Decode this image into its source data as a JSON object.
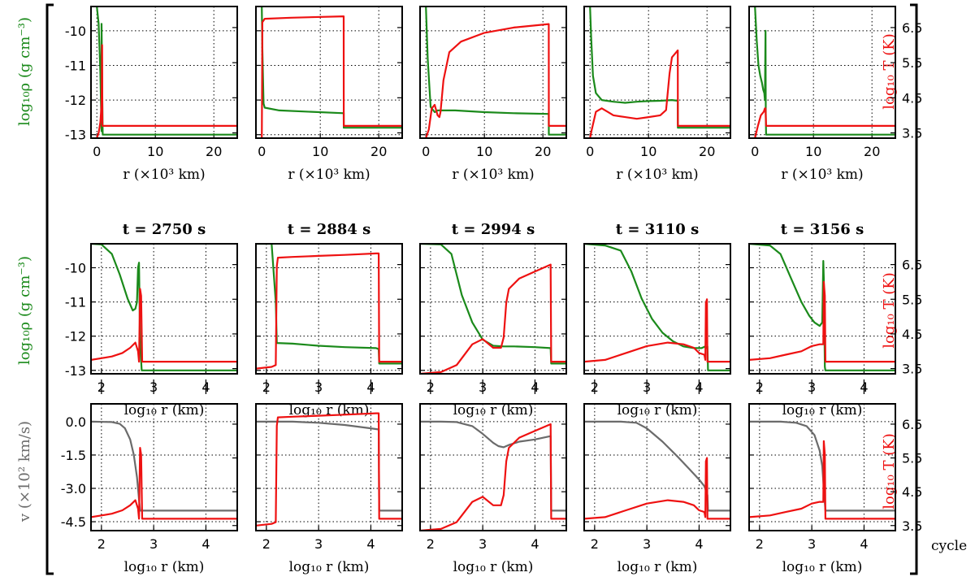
{
  "figure_label": "cycle",
  "colors": {
    "density": "#1b8a1b",
    "temperature": "#ee1111",
    "velocity": "#6b6b6b"
  },
  "axis_labels": {
    "top_x": "r (×10³ km)",
    "log_x": "log₁₀ r (km)",
    "rho_y": "log₁₀ρ (g cm⁻³)",
    "temp_y": "log₁₀ T (K)",
    "vel_y": "v (×10² km/s)"
  },
  "chart_data": {
    "type": "line",
    "panel_titles": [
      "t = 2750 s",
      "t = 2884 s",
      "t = 2994 s",
      "t = 3110 s",
      "t = 3156 s"
    ],
    "rows": [
      {
        "name": "density-temperature-linear",
        "xlim": [
          -1,
          24
        ],
        "xticks": [
          "0",
          "10",
          "20"
        ],
        "left_ylim": [
          -13.1,
          -9.3
        ],
        "left_yticks": [
          "-10",
          "-11",
          "-12",
          "-13"
        ],
        "right_ylim": [
          3.35,
          7.1
        ],
        "right_yticks": [
          "6.5",
          "5.5",
          "4.5",
          "3.5"
        ]
      },
      {
        "name": "density-temperature-log",
        "xlim": [
          1.8,
          4.6
        ],
        "xticks": [
          "2",
          "3",
          "4"
        ],
        "left_ylim": [
          -13.1,
          -9.3
        ],
        "left_yticks": [
          "-10",
          "-11",
          "-12",
          "-13"
        ],
        "right_ylim": [
          3.35,
          7.1
        ],
        "right_yticks": [
          "6.5",
          "5.5",
          "4.5",
          "3.5"
        ]
      },
      {
        "name": "velocity-temperature-log",
        "xlim": [
          1.8,
          4.6
        ],
        "xticks": [
          "2",
          "3",
          "4"
        ],
        "left_ylim": [
          -4.9,
          0.8
        ],
        "left_yticks": [
          "0.0",
          "-1.5",
          "-3.0",
          "-4.5"
        ],
        "right_ylim": [
          3.35,
          7.1
        ],
        "right_yticks": [
          "6.5",
          "5.5",
          "4.5",
          "3.5"
        ]
      }
    ],
    "series": [
      [
        {
          "name": "density",
          "x": [
            0,
            0.3,
            0.6,
            0.8,
            0.8,
            1.0,
            1.2,
            24
          ],
          "y": [
            -9.3,
            -9.8,
            -11.2,
            -12.9,
            -9.8,
            -13.0,
            -13.0,
            -13.0
          ]
        },
        {
          "name": "temperature",
          "x": [
            0,
            0.3,
            0.6,
            0.8,
            0.9,
            0.95,
            1.05,
            24
          ],
          "y": [
            3.35,
            3.5,
            3.8,
            4.3,
            6.0,
            3.7,
            3.7,
            3.7
          ]
        }
      ],
      [
        {
          "name": "density",
          "x": [
            0,
            0.1,
            0.3,
            0.5,
            3,
            14,
            14.01,
            24
          ],
          "y": [
            -9.3,
            -10.5,
            -12.1,
            -12.22,
            -12.3,
            -12.38,
            -12.8,
            -12.8
          ]
        },
        {
          "name": "temperature",
          "x": [
            0,
            0.02,
            0.1,
            0.5,
            5,
            14,
            14.01,
            24
          ],
          "y": [
            3.35,
            3.6,
            6.65,
            6.75,
            6.78,
            6.82,
            3.7,
            3.7
          ]
        }
      ],
      [
        {
          "name": "density",
          "x": [
            0,
            0.3,
            0.8,
            1.5,
            2,
            3,
            5,
            10,
            15,
            21,
            21.01,
            24
          ],
          "y": [
            -9.3,
            -10.8,
            -12.2,
            -12.35,
            -12.3,
            -12.3,
            -12.3,
            -12.35,
            -12.38,
            -12.4,
            -13.0,
            -13.0
          ]
        },
        {
          "name": "temperature",
          "x": [
            0,
            0.5,
            1,
            1.5,
            2,
            2.3,
            2.5,
            3,
            4,
            6,
            10,
            15,
            21,
            21.01,
            24
          ],
          "y": [
            3.35,
            3.6,
            4.2,
            4.3,
            4.0,
            3.95,
            4.1,
            5.0,
            5.8,
            6.1,
            6.35,
            6.5,
            6.6,
            3.7,
            3.7
          ]
        }
      ],
      [
        {
          "name": "density",
          "x": [
            0,
            0.2,
            0.5,
            1,
            2,
            4,
            6,
            8,
            10,
            12,
            14,
            15,
            15.01,
            24
          ],
          "y": [
            -9.3,
            -10.2,
            -11.3,
            -11.8,
            -12.0,
            -12.05,
            -12.08,
            -12.05,
            -12.03,
            -12.02,
            -12.0,
            -12.02,
            -12.8,
            -12.8
          ]
        },
        {
          "name": "temperature",
          "x": [
            0,
            0.3,
            1,
            2,
            3,
            4,
            6,
            8,
            10,
            12,
            13,
            13.6,
            14,
            14.5,
            15,
            15.01,
            24
          ],
          "y": [
            3.35,
            3.6,
            4.1,
            4.2,
            4.1,
            4.0,
            3.95,
            3.9,
            3.95,
            4.0,
            4.15,
            5.2,
            5.65,
            5.75,
            5.85,
            3.7,
            3.7
          ]
        }
      ],
      [
        {
          "name": "density",
          "x": [
            0,
            0.3,
            0.6,
            0.9,
            1.2,
            1.4,
            1.6,
            1.7,
            1.8,
            1.85,
            1.9,
            2.0,
            24
          ],
          "y": [
            -9.3,
            -10.3,
            -11.0,
            -11.3,
            -11.5,
            -11.7,
            -11.8,
            -12.0,
            -10.0,
            -12.5,
            -13.0,
            -13.0,
            -13.0
          ]
        },
        {
          "name": "temperature",
          "x": [
            0,
            0.5,
            1,
            1.5,
            1.7,
            1.8,
            1.9,
            2.0,
            24
          ],
          "y": [
            3.35,
            3.7,
            4.0,
            4.1,
            4.2,
            4.2,
            3.7,
            3.7,
            3.7
          ]
        }
      ],
      [
        {
          "name": "density",
          "x": [
            1.8,
            2.0,
            2.2,
            2.35,
            2.5,
            2.6,
            2.65,
            2.68,
            2.7,
            2.72,
            2.74,
            2.77,
            2.8,
            4.6
          ],
          "y": [
            -9.3,
            -9.32,
            -9.6,
            -10.2,
            -10.9,
            -11.25,
            -11.2,
            -11.0,
            -10.0,
            -9.85,
            -12.2,
            -13.0,
            -13.0,
            -13.0
          ]
        },
        {
          "name": "temperature",
          "x": [
            1.8,
            2.0,
            2.2,
            2.4,
            2.55,
            2.65,
            2.7,
            2.72,
            2.74,
            2.76,
            2.78,
            2.8,
            4.6
          ],
          "y": [
            3.75,
            3.8,
            3.85,
            3.95,
            4.1,
            4.25,
            4.0,
            3.7,
            5.8,
            5.6,
            3.7,
            3.7,
            3.7
          ]
        }
      ],
      [
        {
          "name": "density",
          "x": [
            1.8,
            2.0,
            2.1,
            2.18,
            2.2,
            2.5,
            3,
            3.5,
            4.1,
            4.15,
            4.16,
            4.6
          ],
          "y": [
            -9.3,
            -9.3,
            -9.3,
            -11.0,
            -12.2,
            -12.22,
            -12.28,
            -12.32,
            -12.35,
            -12.38,
            -12.8,
            -12.8
          ]
        },
        {
          "name": "temperature",
          "x": [
            1.8,
            2.1,
            2.18,
            2.2,
            2.22,
            2.5,
            3,
            3.5,
            4.1,
            4.15,
            4.16,
            4.6
          ],
          "y": [
            3.5,
            3.55,
            3.6,
            6.45,
            6.7,
            6.72,
            6.75,
            6.78,
            6.82,
            6.82,
            3.7,
            3.7
          ]
        }
      ],
      [
        {
          "name": "density",
          "x": [
            1.8,
            2.2,
            2.4,
            2.6,
            2.8,
            3.0,
            3.2,
            3.4,
            3.6,
            4.0,
            4.3,
            4.31,
            4.6
          ],
          "y": [
            -9.3,
            -9.32,
            -9.6,
            -10.8,
            -11.6,
            -12.1,
            -12.28,
            -12.3,
            -12.3,
            -12.32,
            -12.35,
            -12.8,
            -12.8
          ]
        },
        {
          "name": "temperature",
          "x": [
            1.8,
            2.2,
            2.5,
            2.8,
            3.0,
            3.2,
            3.35,
            3.4,
            3.45,
            3.5,
            3.7,
            4.0,
            4.3,
            4.31,
            4.6
          ],
          "y": [
            3.35,
            3.4,
            3.6,
            4.2,
            4.35,
            4.1,
            4.1,
            4.4,
            5.4,
            5.8,
            6.1,
            6.3,
            6.5,
            3.7,
            3.7
          ]
        }
      ],
      [
        {
          "name": "density",
          "x": [
            1.8,
            2.2,
            2.5,
            2.7,
            2.9,
            3.1,
            3.3,
            3.5,
            3.7,
            3.9,
            4.05,
            4.12,
            4.13,
            4.16,
            4.17,
            4.6
          ],
          "y": [
            -9.3,
            -9.35,
            -9.5,
            -10.1,
            -10.9,
            -11.5,
            -11.9,
            -12.15,
            -12.3,
            -12.35,
            -12.35,
            -12.3,
            -12.35,
            -12.3,
            -13.0,
            -13.0
          ]
        },
        {
          "name": "temperature",
          "x": [
            1.8,
            2.2,
            2.6,
            3.0,
            3.4,
            3.7,
            3.9,
            4.0,
            4.1,
            4.12,
            4.13,
            4.15,
            4.16,
            4.6
          ],
          "y": [
            3.7,
            3.75,
            3.95,
            4.15,
            4.25,
            4.2,
            4.1,
            3.95,
            3.9,
            3.75,
            5.4,
            5.5,
            3.7,
            3.7
          ]
        }
      ],
      [
        {
          "name": "density",
          "x": [
            1.8,
            2.2,
            2.4,
            2.6,
            2.8,
            2.95,
            3.05,
            3.15,
            3.2,
            3.22,
            3.23,
            3.25,
            3.26,
            4.6
          ],
          "y": [
            -9.3,
            -9.35,
            -9.6,
            -10.3,
            -11.0,
            -11.4,
            -11.6,
            -11.7,
            -11.6,
            -9.8,
            -10.3,
            -12.9,
            -13.0,
            -13.0
          ]
        },
        {
          "name": "temperature",
          "x": [
            1.8,
            2.2,
            2.5,
            2.8,
            3.0,
            3.15,
            3.2,
            3.22,
            3.23,
            3.25,
            3.26,
            4.6
          ],
          "y": [
            3.75,
            3.8,
            3.9,
            4.0,
            4.15,
            4.2,
            4.2,
            4.2,
            6.0,
            5.6,
            3.7,
            3.7
          ]
        }
      ],
      [
        {
          "name": "velocity",
          "x": [
            1.8,
            2.2,
            2.35,
            2.45,
            2.55,
            2.62,
            2.68,
            2.72,
            2.74,
            2.77,
            2.8,
            4.6
          ],
          "y": [
            0.0,
            -0.02,
            -0.1,
            -0.3,
            -0.8,
            -1.5,
            -2.5,
            -3.5,
            -4.0,
            -4.0,
            -4.0,
            -4.0
          ]
        },
        {
          "name": "temperature",
          "x": [
            1.8,
            2.0,
            2.2,
            2.4,
            2.55,
            2.65,
            2.7,
            2.72,
            2.74,
            2.76,
            2.78,
            2.8,
            4.6
          ],
          "y": [
            3.75,
            3.8,
            3.85,
            3.95,
            4.1,
            4.25,
            4.0,
            3.7,
            5.8,
            5.6,
            3.7,
            3.7,
            3.7
          ]
        }
      ],
      [
        {
          "name": "velocity",
          "x": [
            1.8,
            2.2,
            2.5,
            3.0,
            3.5,
            4.0,
            4.15,
            4.16,
            4.6
          ],
          "y": [
            0.0,
            0.0,
            0.0,
            -0.05,
            -0.15,
            -0.3,
            -0.35,
            -4.0,
            -4.0
          ]
        },
        {
          "name": "temperature",
          "x": [
            1.8,
            2.1,
            2.18,
            2.2,
            2.22,
            2.5,
            3,
            3.5,
            4.1,
            4.15,
            4.16,
            4.6
          ],
          "y": [
            3.5,
            3.55,
            3.6,
            6.45,
            6.7,
            6.72,
            6.75,
            6.78,
            6.82,
            6.82,
            3.7,
            3.7
          ]
        }
      ],
      [
        {
          "name": "velocity",
          "x": [
            1.8,
            2.2,
            2.5,
            2.8,
            3.0,
            3.2,
            3.3,
            3.4,
            3.5,
            3.7,
            4.0,
            4.3,
            4.31,
            4.6
          ],
          "y": [
            0.0,
            0.0,
            -0.02,
            -0.2,
            -0.55,
            -0.95,
            -1.1,
            -1.15,
            -1.05,
            -0.9,
            -0.8,
            -0.65,
            -4.0,
            -4.0
          ]
        },
        {
          "name": "temperature",
          "x": [
            1.8,
            2.2,
            2.5,
            2.8,
            3.0,
            3.2,
            3.35,
            3.4,
            3.45,
            3.5,
            3.7,
            4.0,
            4.3,
            4.31,
            4.6
          ],
          "y": [
            3.35,
            3.4,
            3.6,
            4.2,
            4.35,
            4.1,
            4.1,
            4.4,
            5.4,
            5.8,
            6.1,
            6.3,
            6.5,
            3.7,
            3.7
          ]
        }
      ],
      [
        {
          "name": "velocity",
          "x": [
            1.8,
            2.5,
            2.8,
            3.0,
            3.3,
            3.6,
            3.8,
            4.0,
            4.1,
            4.13,
            4.16,
            4.17,
            4.6
          ],
          "y": [
            0.0,
            0.0,
            -0.05,
            -0.3,
            -0.9,
            -1.6,
            -2.1,
            -2.6,
            -2.9,
            -3.1,
            -3.3,
            -4.0,
            -4.0
          ]
        },
        {
          "name": "temperature",
          "x": [
            1.8,
            2.2,
            2.6,
            3.0,
            3.4,
            3.7,
            3.9,
            4.0,
            4.1,
            4.12,
            4.13,
            4.15,
            4.16,
            4.6
          ],
          "y": [
            3.7,
            3.75,
            3.95,
            4.15,
            4.25,
            4.2,
            4.1,
            3.95,
            3.9,
            3.75,
            5.4,
            5.5,
            3.7,
            3.7
          ]
        }
      ],
      [
        {
          "name": "velocity",
          "x": [
            1.8,
            2.4,
            2.7,
            2.9,
            3.05,
            3.15,
            3.2,
            3.23,
            3.26,
            4.6
          ],
          "y": [
            0.0,
            0.0,
            -0.05,
            -0.2,
            -0.6,
            -1.3,
            -2.0,
            -3.0,
            -4.0,
            -4.0
          ]
        },
        {
          "name": "temperature",
          "x": [
            1.8,
            2.2,
            2.5,
            2.8,
            3.0,
            3.15,
            3.2,
            3.22,
            3.23,
            3.25,
            3.26,
            4.6
          ],
          "y": [
            3.75,
            3.8,
            3.9,
            4.0,
            4.15,
            4.2,
            4.2,
            4.2,
            6.0,
            5.6,
            3.7,
            3.7
          ]
        }
      ]
    ]
  }
}
